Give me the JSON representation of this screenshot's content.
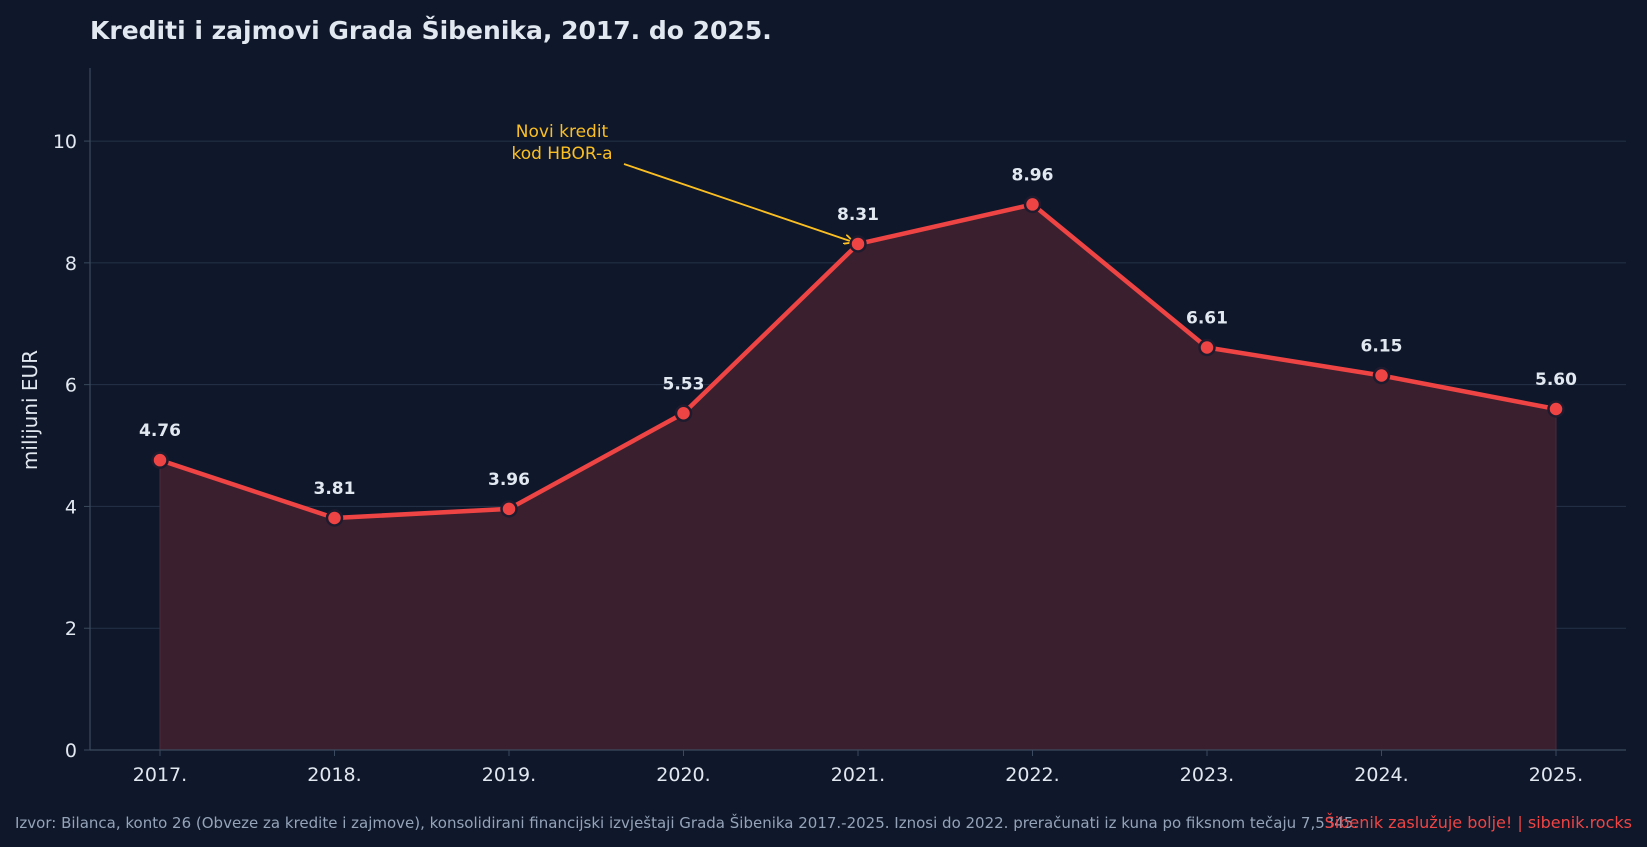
{
  "chart_data": {
    "type": "line",
    "title": "Krediti i zajmovi Grada Šibenika, 2017. do 2025.",
    "xlabel": "",
    "ylabel": "milijuni EUR",
    "categories": [
      "2017.",
      "2018.",
      "2019.",
      "2020.",
      "2021.",
      "2022.",
      "2023.",
      "2024.",
      "2025."
    ],
    "values": [
      4.76,
      3.81,
      3.96,
      5.53,
      8.31,
      8.96,
      6.61,
      6.15,
      5.6
    ],
    "data_labels": [
      "4.76",
      "3.81",
      "3.96",
      "5.53",
      "8.31",
      "8.96",
      "6.61",
      "6.15",
      "5.60"
    ],
    "ylim": [
      0,
      11.2
    ],
    "yticks": [
      0,
      2,
      4,
      6,
      8,
      10
    ],
    "grid": true,
    "area_fill": true,
    "annotation": {
      "lines": [
        "Novi kredit",
        "kod HBOR-a"
      ],
      "target_category": "2021."
    }
  },
  "footer": {
    "source": "Izvor: Bilanca, konto 26 (Obveze za kredite i zajmove), konsolidirani financijski izvještaji Grada Šibenika 2017.-2025. Iznosi do 2022. preračunati iz kuna po fiksnom tečaju 7,5345.",
    "brand": "Šibenik zaslužuje bolje!  |  sibenik.rocks"
  },
  "colors": {
    "background": "#0f172a",
    "line": "#ef4444",
    "area": "#3a1f2e",
    "annotation": "#fbbf24",
    "grid": "#253247",
    "axis": "#3b4a5e",
    "text": "#e2e8f0",
    "muted": "#94a3b8"
  }
}
